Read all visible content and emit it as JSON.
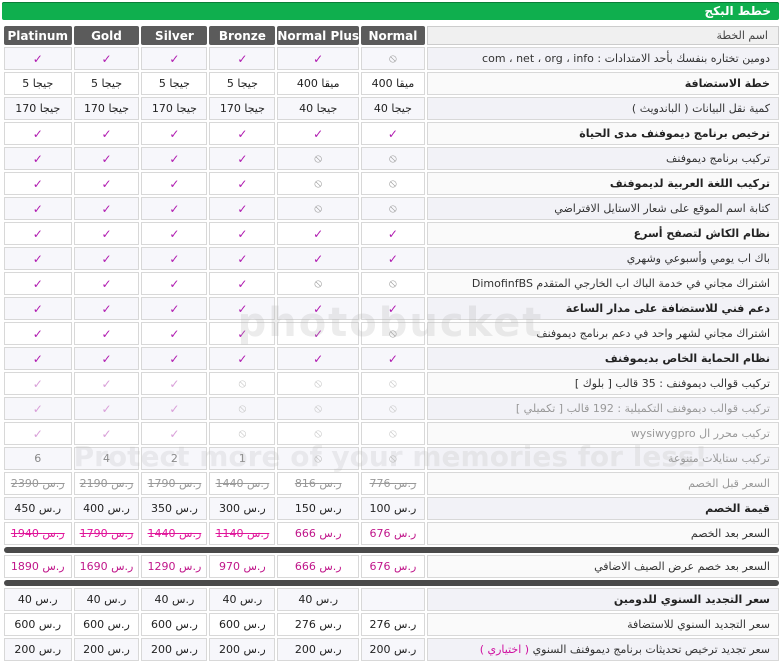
{
  "header": {
    "title": "خطط البكج"
  },
  "plans": [
    "Platinum",
    "Gold",
    "Silver",
    "Bronze",
    "Normal Plus",
    "Normal"
  ],
  "label_head": "اسم الخطة",
  "symbols": {
    "check": "✓",
    "no": "⦸"
  },
  "rows": [
    {
      "label": "دومين تختاره بنفسك بأحد الامتدادات : com ، net ، org ، info",
      "cells": [
        "✓",
        "✓",
        "✓",
        "✓",
        "✓",
        "⦸"
      ],
      "bold": false
    },
    {
      "label": "خطة الاستضافة",
      "cells": [
        "5 جيجا",
        "5 جيجا",
        "5 جيجا",
        "5 جيجا",
        "400 ميقا",
        "400 ميقا"
      ],
      "bold": true
    },
    {
      "label": "كمية نقل البيانات ( الباندويث )",
      "cells": [
        "170 جيجا",
        "170 جيجا",
        "170 جيجا",
        "170 جيجا",
        "40 جيجا",
        "40 جيجا"
      ],
      "bold": false
    },
    {
      "label": "ترخيص برنامج ديموفنف مدى الحياة",
      "cells": [
        "✓",
        "✓",
        "✓",
        "✓",
        "✓",
        "✓"
      ],
      "bold": true
    },
    {
      "label": "تركيب برنامج ديموفنف",
      "cells": [
        "✓",
        "✓",
        "✓",
        "✓",
        "⦸",
        "⦸"
      ],
      "bold": false
    },
    {
      "label": "تركيب اللغة العربية لديموفنف",
      "cells": [
        "✓",
        "✓",
        "✓",
        "✓",
        "⦸",
        "⦸"
      ],
      "bold": true
    },
    {
      "label": "كتابة اسم الموقع على شعار الاستايل الافتراضي",
      "cells": [
        "✓",
        "✓",
        "✓",
        "✓",
        "⦸",
        "⦸"
      ],
      "bold": false
    },
    {
      "label": "نظام الكاش لتصفح أسرع",
      "cells": [
        "✓",
        "✓",
        "✓",
        "✓",
        "✓",
        "✓"
      ],
      "bold": true
    },
    {
      "label": "باك اب يومي وأسبوعي وشهري",
      "cells": [
        "✓",
        "✓",
        "✓",
        "✓",
        "✓",
        "✓"
      ],
      "bold": false
    },
    {
      "label": "اشتراك مجاني في خدمة الباك اب الخارجي المتقدم DimofinfBS",
      "cells": [
        "✓",
        "✓",
        "✓",
        "✓",
        "⦸",
        "⦸"
      ],
      "bold": false
    },
    {
      "label": "دعم فني للاستضافة على مدار الساعة",
      "cells": [
        "✓",
        "✓",
        "✓",
        "✓",
        "✓",
        "✓"
      ],
      "bold": true
    },
    {
      "label": "اشتراك مجاني لشهر واحد في دعم برنامج ديموفنف",
      "cells": [
        "✓",
        "✓",
        "✓",
        "✓",
        "✓",
        "⦸"
      ],
      "bold": false
    },
    {
      "label": "نظام الحماية الخاص بديموفنف",
      "cells": [
        "✓",
        "✓",
        "✓",
        "✓",
        "✓",
        "✓"
      ],
      "bold": true
    },
    {
      "label": "تركيب قوالب ديموفنف : 35 قالب [ بلوك ]",
      "cells": [
        "✓",
        "✓",
        "✓",
        "⦸",
        "⦸",
        "⦸"
      ],
      "bold": false
    },
    {
      "label": "تركيب قوالب ديموفنف التكميلية : 192 قالب [ تكميلي ]",
      "cells": [
        "✓",
        "✓",
        "✓",
        "⦸",
        "⦸",
        "⦸"
      ],
      "bold": false
    },
    {
      "label": "تركيب محرر ال wysiwygpro",
      "cells": [
        "✓",
        "✓",
        "✓",
        "⦸",
        "⦸",
        "⦸"
      ],
      "bold": false
    },
    {
      "label": "تركيب ستايلات متنوعة",
      "cells": [
        "6",
        "4",
        "2",
        "1",
        "⦸",
        "⦸"
      ],
      "bold": false
    },
    {
      "label": "السعر قبل الخصم",
      "cells": [
        "2390 ر.س",
        "2190 ر.س",
        "1790 ر.س",
        "1440 ر.س",
        "816 ر.س",
        "776 ر.س"
      ],
      "bold": false
    },
    {
      "label": "قيمة الخصم",
      "cells": [
        "450 ر.س",
        "400 ر.س",
        "350 ر.س",
        "300 ر.س",
        "150 ر.س",
        "100 ر.س"
      ],
      "bold": true
    },
    {
      "label": "السعر بعد الخصم",
      "cells": [
        "1940 ر.س",
        "1790 ر.س",
        "1440 ر.س",
        "1140 ر.س",
        "666 ر.س",
        "676 ر.س"
      ],
      "bold": false
    }
  ],
  "summer_row": {
    "label": "السعر بعد خصم عرض الصيف الاضافي",
    "cells": [
      "1890 ر.س",
      "1690 ر.س",
      "1290 ر.س",
      "970 ر.س",
      "666 ر.س",
      "676 ر.س"
    ]
  },
  "renew_rows": [
    {
      "label": "سعر التجديد السنوي للدومين",
      "cells": [
        "40 ر.س",
        "40 ر.س",
        "40 ر.س",
        "40 ر.س",
        "40 ر.س",
        ""
      ]
    },
    {
      "label": "سعر التجديد السنوي للاستضافة",
      "cells": [
        "600 ر.س",
        "600 ر.س",
        "600 ر.س",
        "600 ر.س",
        "276 ر.س",
        "276 ر.س"
      ]
    },
    {
      "label": "سعر تجديد ترخيص تحديثات برنامج ديموفنف السنوي",
      "optional": "( اختياري )",
      "cells": [
        "200 ر.س",
        "200 ر.س",
        "200 ر.س",
        "200 ر.س",
        "200 ر.س",
        "200 ر.س"
      ]
    }
  ],
  "watermark": {
    "line1": "photobucket",
    "line2": "Protect more of your memories for less!"
  }
}
